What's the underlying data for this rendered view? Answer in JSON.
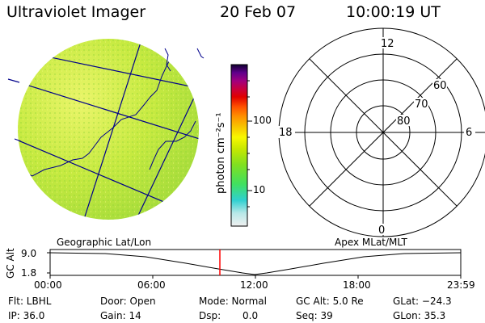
{
  "header": {
    "title": "Ultraviolet Imager",
    "date": "20 Feb 07",
    "time": "10:00:19 UT"
  },
  "colorbar": {
    "unit_label": "photon cm⁻²s⁻¹",
    "ticks": [
      "100",
      "10"
    ]
  },
  "polar_plot": {
    "mlt_labels": [
      "12",
      "18",
      "6",
      "0"
    ],
    "lat_labels": [
      "60",
      "70",
      "80"
    ]
  },
  "coords": {
    "left_label": "Geographic Lat/Lon",
    "right_label": "Apex MLat/MLT"
  },
  "alt_plot": {
    "axis_label": "GC Alt",
    "y_ticks": [
      "9.0",
      "1.8"
    ],
    "x_ticks": [
      "00:00",
      "06:00",
      "12:00",
      "18:00",
      "23:59"
    ],
    "marker_time": "10:00"
  },
  "status": {
    "flt": "Flt: LBHL",
    "ip": "IP: 36.0",
    "door": "Door: Open",
    "gain": "Gain: 14",
    "mode": "Mode: Normal",
    "dsp_label": "Dsp:",
    "dsp_value": "0.0",
    "gc_alt": "GC Alt: 5.0 Re",
    "seq": "Seq: 39",
    "glat": "GLat: −24.3",
    "glon": "GLon: 35.3"
  },
  "colors": {
    "grid_lines": "#00008b",
    "marker": "#ff0000",
    "image_base": "#b6e63a"
  }
}
